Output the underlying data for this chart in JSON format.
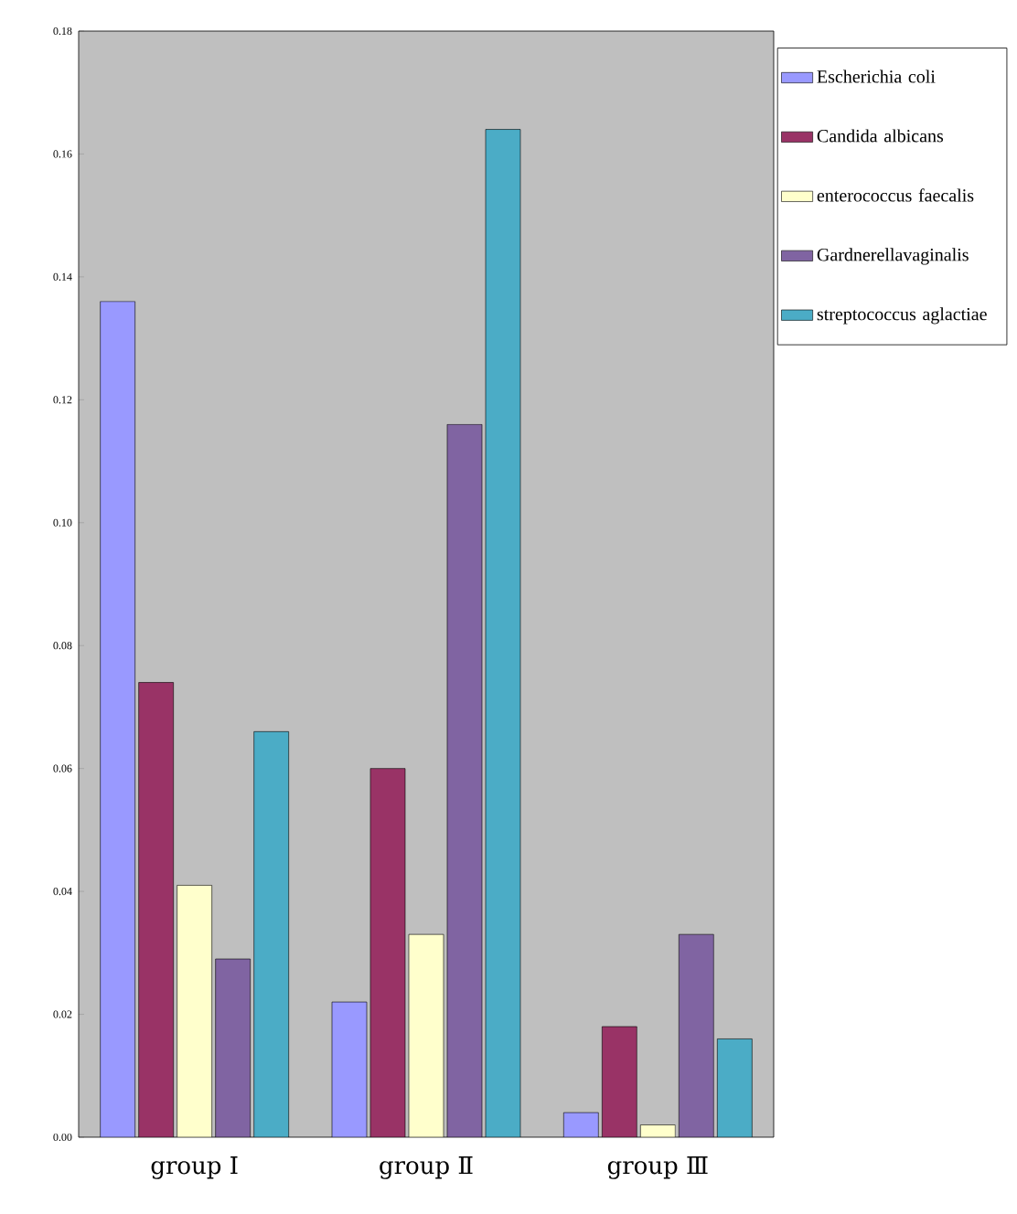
{
  "chart_data": {
    "type": "bar",
    "categories": [
      "group Ⅰ",
      "group Ⅱ",
      "group Ⅲ"
    ],
    "series": [
      {
        "name": "Escherichia coli",
        "color": "#9999ff",
        "values": [
          0.136,
          0.022,
          0.004
        ]
      },
      {
        "name": "Candida albicans",
        "color": "#993366",
        "values": [
          0.074,
          0.06,
          0.018
        ]
      },
      {
        "name": "enterococcus faecalis",
        "color": "#ffffcc",
        "values": [
          0.041,
          0.033,
          0.002
        ]
      },
      {
        "name": "Gardnerellavaginalis",
        "color": "#8064a2",
        "values": [
          0.029,
          0.116,
          0.033
        ]
      },
      {
        "name": "streptococcus aglactiae",
        "color": "#4bacc6",
        "values": [
          0.066,
          0.164,
          0.016
        ]
      }
    ],
    "ylim": [
      0,
      0.18
    ],
    "yticks": [
      {
        "value": 0,
        "label": "0.00"
      },
      {
        "value": 0.02,
        "label": "0.02"
      },
      {
        "value": 0.04,
        "label": "0.04"
      },
      {
        "value": 0.06,
        "label": "0.06"
      },
      {
        "value": 0.08,
        "label": "0.08"
      },
      {
        "value": 0.1,
        "label": "0.10"
      },
      {
        "value": 0.12,
        "label": "0.12"
      },
      {
        "value": 0.14,
        "label": "0.14"
      },
      {
        "value": 0.16,
        "label": "0.16"
      },
      {
        "value": 0.18,
        "label": "0.18"
      }
    ],
    "legend": "right",
    "grid": false
  }
}
